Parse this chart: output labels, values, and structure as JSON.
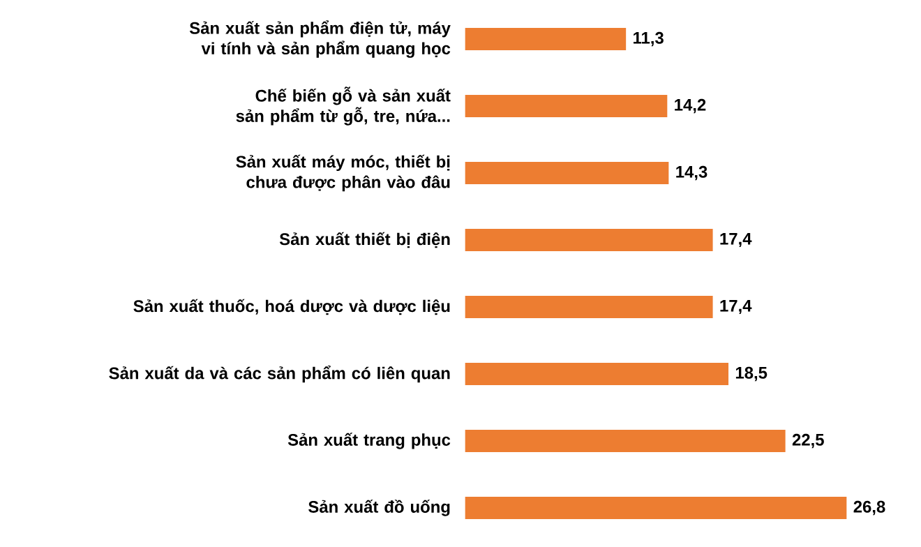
{
  "chart_data": {
    "type": "bar",
    "orientation": "horizontal",
    "categories": [
      "Sản xuất sản phẩm điện tử, máy vi tính và sản phẩm quang học",
      "Chế biến gỗ và sản xuất sản phẩm từ gỗ, tre, nứa...",
      "Sản xuất máy móc, thiết bị chưa được phân vào đâu",
      "Sản xuất thiết bị điện",
      "Sản xuất thuốc, hoá dược và dược liệu",
      "Sản xuất da và các sản phẩm có liên quan",
      "Sản xuất trang phục",
      "Sản xuất đồ uống"
    ],
    "values": [
      11.3,
      14.2,
      14.3,
      17.4,
      17.4,
      18.5,
      22.5,
      26.8
    ],
    "value_labels": [
      "11,3",
      "14,2",
      "14,3",
      "17,4",
      "17,4",
      "18,5",
      "22,5",
      "26,8"
    ],
    "color": "#ed7d31",
    "tick_labels": "y"
  }
}
